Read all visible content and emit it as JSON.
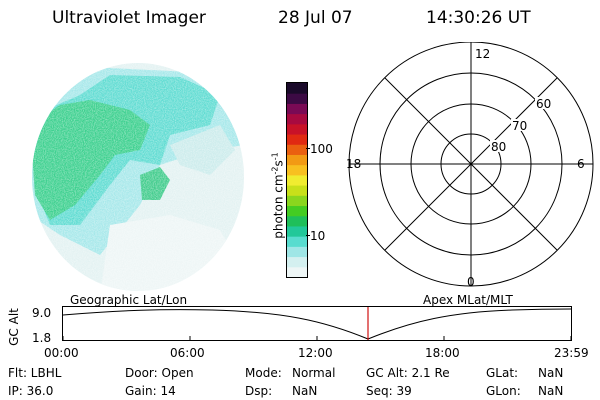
{
  "header": {
    "instrument": "Ultraviolet Imager",
    "date": "28 Jul 07",
    "time": "14:30:26 UT"
  },
  "colorbar": {
    "label": "photon cm",
    "label_sup1": "-2",
    "label_mid": "s",
    "label_sup2": "-1",
    "ticks": [
      "100",
      "10"
    ],
    "colors": [
      "#eef6f6",
      "#d4f0f0",
      "#9fe6e6",
      "#58dccf",
      "#22c89a",
      "#1fbf5a",
      "#44cc22",
      "#8ad61e",
      "#c8e01a",
      "#f0ec30",
      "#f8c020",
      "#f29a14",
      "#ea6010",
      "#e02a12",
      "#c81228",
      "#a80a40",
      "#7a0a55",
      "#3c0a44",
      "#1a0a2a"
    ],
    "color_names": [
      "near-white",
      "pale-cyan",
      "light-cyan",
      "cyan",
      "teal",
      "green",
      "green",
      "yellow-green",
      "yellow-green",
      "yellow",
      "orange-yellow",
      "orange",
      "red-orange",
      "red",
      "crimson",
      "dark-red",
      "purple",
      "dark-purple",
      "black-purple"
    ]
  },
  "polar": {
    "hour_labels": [
      "12",
      "18",
      "6",
      "0"
    ],
    "lat_labels": [
      "60",
      "70",
      "80"
    ]
  },
  "timeline": {
    "geo_label": "Geographic Lat/Lon",
    "apex_label": "Apex MLat/MLT",
    "axis_label": "GC Alt",
    "y_top": "9.0",
    "y_bottom": "1.8",
    "time_ticks": [
      "00:00",
      "06:00",
      "12:00",
      "18:00",
      "23:59"
    ]
  },
  "info": {
    "flt": "Flt: LBHL",
    "ip": "IP: 36.0",
    "door": "Door: Open",
    "gain": "Gain: 14",
    "mode_label": "Mode:",
    "mode_value": "Normal",
    "dsp_label": "Dsp:",
    "dsp_value": "NaN",
    "gcalt": "GC Alt: 2.1 Re",
    "seq": "Seq: 39",
    "glat_label": "GLat:",
    "glat_value": "NaN",
    "glon_label": "GLon:",
    "glon_value": "NaN"
  }
}
